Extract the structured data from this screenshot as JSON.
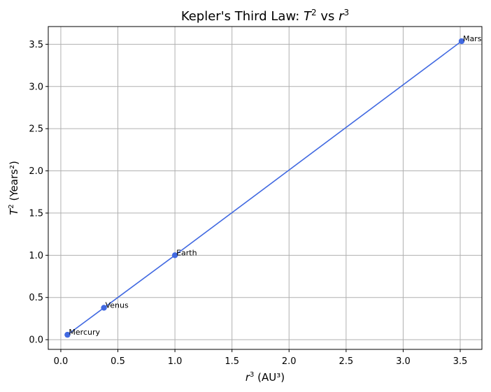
{
  "chart_data": {
    "type": "line",
    "title": "Kepler's Third Law: T² vs r³",
    "title_parts": {
      "prefix": "Kepler's Third Law: ",
      "t": "T",
      "sup1": "2",
      "mid": " vs ",
      "r": "r",
      "sup2": "3"
    },
    "xlabel": "r³ (AU³)",
    "xlabel_parts": {
      "r": "r",
      "sup": "3",
      "rest": " (AU³)"
    },
    "ylabel": "T² (Years²)",
    "ylabel_parts": {
      "t": "T",
      "sup": "2",
      "rest": " (Years²)"
    },
    "xlim": [
      -0.11,
      3.69
    ],
    "ylim": [
      -0.115,
      3.71
    ],
    "xticks": [
      0.0,
      0.5,
      1.0,
      1.5,
      2.0,
      2.5,
      3.0,
      3.5
    ],
    "xtick_labels": [
      "0.0",
      "0.5",
      "1.0",
      "1.5",
      "2.0",
      "2.5",
      "3.0",
      "3.5"
    ],
    "yticks": [
      0.0,
      0.5,
      1.0,
      1.5,
      2.0,
      2.5,
      3.0,
      3.5
    ],
    "ytick_labels": [
      "0.0",
      "0.5",
      "1.0",
      "1.5",
      "2.0",
      "2.5",
      "3.0",
      "3.5"
    ],
    "grid": true,
    "color": "#4169e1",
    "points": [
      {
        "label": "Mercury",
        "x": 0.058,
        "y": 0.058
      },
      {
        "label": "Venus",
        "x": 0.378,
        "y": 0.378
      },
      {
        "label": "Earth",
        "x": 1.0,
        "y": 1.0
      },
      {
        "label": "Mars",
        "x": 3.512,
        "y": 3.537
      }
    ]
  }
}
